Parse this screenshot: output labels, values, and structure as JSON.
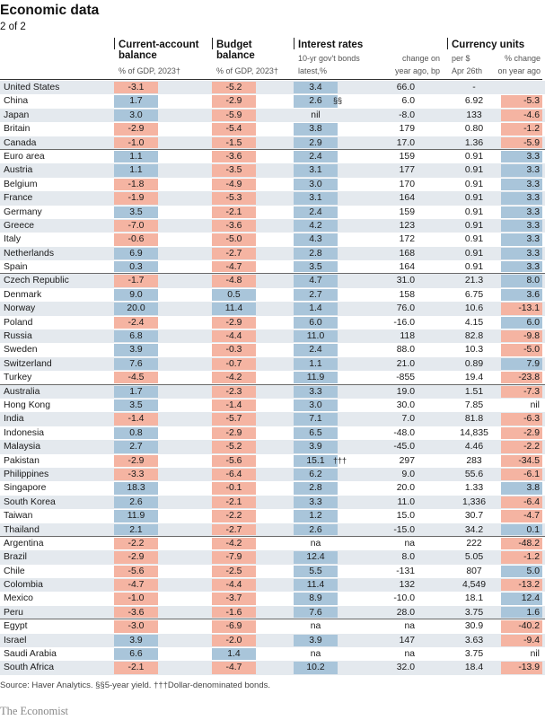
{
  "title": "Economic data",
  "subtitle": "2 of 2",
  "headers": {
    "current_account": "Current-account balance",
    "current_account_sub": "% of GDP, 2023†",
    "budget": "Budget balance",
    "budget_sub": "% of GDP, 2023†",
    "interest": "Interest rates",
    "interest_sub1": "10-yr gov't bonds",
    "interest_sub2": "latest,%",
    "interest_sub3": "change on",
    "interest_sub4": "year ago, bp",
    "currency": "Currency units",
    "currency_sub1": "per $",
    "currency_sub2": "Apr 26th",
    "currency_sub3": "% change",
    "currency_sub4": "on year ago"
  },
  "rows": [
    {
      "country": "United States",
      "ca": "-3.1",
      "bb": "-5.2",
      "ir": "3.4",
      "note": "",
      "irc": "66.0",
      "cur": "-",
      "cc": ""
    },
    {
      "country": "China",
      "ca": "1.7",
      "bb": "-2.9",
      "ir": "2.6",
      "note": "§§",
      "irc": "6.0",
      "cur": "6.92",
      "cc": "-5.3"
    },
    {
      "country": "Japan",
      "ca": "3.0",
      "bb": "-5.9",
      "ir": "nil",
      "note": "",
      "irc": "-8.0",
      "cur": "133",
      "cc": "-4.6"
    },
    {
      "country": "Britain",
      "ca": "-2.9",
      "bb": "-5.4",
      "ir": "3.8",
      "note": "",
      "irc": "179",
      "cur": "0.80",
      "cc": "-1.2"
    },
    {
      "country": "Canada",
      "ca": "-1.0",
      "bb": "-1.5",
      "ir": "2.9",
      "note": "",
      "irc": "17.0",
      "cur": "1.36",
      "cc": "-5.9"
    },
    {
      "country": "Euro area",
      "ca": "1.1",
      "bb": "-3.6",
      "ir": "2.4",
      "note": "",
      "irc": "159",
      "cur": "0.91",
      "cc": "3.3"
    },
    {
      "country": "Austria",
      "ca": "1.1",
      "bb": "-3.5",
      "ir": "3.1",
      "note": "",
      "irc": "177",
      "cur": "0.91",
      "cc": "3.3"
    },
    {
      "country": "Belgium",
      "ca": "-1.8",
      "bb": "-4.9",
      "ir": "3.0",
      "note": "",
      "irc": "170",
      "cur": "0.91",
      "cc": "3.3"
    },
    {
      "country": "France",
      "ca": "-1.9",
      "bb": "-5.3",
      "ir": "3.1",
      "note": "",
      "irc": "164",
      "cur": "0.91",
      "cc": "3.3"
    },
    {
      "country": "Germany",
      "ca": "3.5",
      "bb": "-2.1",
      "ir": "2.4",
      "note": "",
      "irc": "159",
      "cur": "0.91",
      "cc": "3.3"
    },
    {
      "country": "Greece",
      "ca": "-7.0",
      "bb": "-3.6",
      "ir": "4.2",
      "note": "",
      "irc": "123",
      "cur": "0.91",
      "cc": "3.3"
    },
    {
      "country": "Italy",
      "ca": "-0.6",
      "bb": "-5.0",
      "ir": "4.3",
      "note": "",
      "irc": "172",
      "cur": "0.91",
      "cc": "3.3"
    },
    {
      "country": "Netherlands",
      "ca": "6.9",
      "bb": "-2.7",
      "ir": "2.8",
      "note": "",
      "irc": "168",
      "cur": "0.91",
      "cc": "3.3"
    },
    {
      "country": "Spain",
      "ca": "0.3",
      "bb": "-4.7",
      "ir": "3.5",
      "note": "",
      "irc": "164",
      "cur": "0.91",
      "cc": "3.3"
    },
    {
      "country": "Czech Republic",
      "ca": "-1.7",
      "bb": "-4.8",
      "ir": "4.7",
      "note": "",
      "irc": "31.0",
      "cur": "21.3",
      "cc": "8.0"
    },
    {
      "country": "Denmark",
      "ca": "9.0",
      "bb": "0.5",
      "ir": "2.7",
      "note": "",
      "irc": "158",
      "cur": "6.75",
      "cc": "3.6"
    },
    {
      "country": "Norway",
      "ca": "20.0",
      "bb": "11.4",
      "ir": "1.4",
      "note": "",
      "irc": "76.0",
      "cur": "10.6",
      "cc": "-13.1"
    },
    {
      "country": "Poland",
      "ca": "-2.4",
      "bb": "-2.9",
      "ir": "6.0",
      "note": "",
      "irc": "-16.0",
      "cur": "4.15",
      "cc": "6.0"
    },
    {
      "country": "Russia",
      "ca": "6.8",
      "bb": "-4.4",
      "ir": "11.0",
      "note": "",
      "irc": "118",
      "cur": "82.8",
      "cc": "-9.8"
    },
    {
      "country": "Sweden",
      "ca": "3.9",
      "bb": "-0.3",
      "ir": "2.4",
      "note": "",
      "irc": "88.0",
      "cur": "10.3",
      "cc": "-5.0"
    },
    {
      "country": "Switzerland",
      "ca": "7.6",
      "bb": "-0.7",
      "ir": "1.1",
      "note": "",
      "irc": "21.0",
      "cur": "0.89",
      "cc": "7.9"
    },
    {
      "country": "Turkey",
      "ca": "-4.5",
      "bb": "-4.2",
      "ir": "11.9",
      "note": "",
      "irc": "-855",
      "cur": "19.4",
      "cc": "-23.8"
    },
    {
      "country": "Australia",
      "ca": "1.7",
      "bb": "-2.3",
      "ir": "3.3",
      "note": "",
      "irc": "19.0",
      "cur": "1.51",
      "cc": "-7.3"
    },
    {
      "country": "Hong Kong",
      "ca": "3.5",
      "bb": "-1.4",
      "ir": "3.0",
      "note": "",
      "irc": "30.0",
      "cur": "7.85",
      "cc": "nil"
    },
    {
      "country": "India",
      "ca": "-1.4",
      "bb": "-5.7",
      "ir": "7.1",
      "note": "",
      "irc": "7.0",
      "cur": "81.8",
      "cc": "-6.3"
    },
    {
      "country": "Indonesia",
      "ca": "0.8",
      "bb": "-2.9",
      "ir": "6.5",
      "note": "",
      "irc": "-48.0",
      "cur": "14,835",
      "cc": "-2.9"
    },
    {
      "country": "Malaysia",
      "ca": "2.7",
      "bb": "-5.2",
      "ir": "3.9",
      "note": "",
      "irc": "-45.0",
      "cur": "4.46",
      "cc": "-2.2"
    },
    {
      "country": "Pakistan",
      "ca": "-2.9",
      "bb": "-5.6",
      "ir": "15.1",
      "note": "†††",
      "irc": "297",
      "cur": "283",
      "cc": "-34.5"
    },
    {
      "country": "Philippines",
      "ca": "-3.3",
      "bb": "-6.4",
      "ir": "6.2",
      "note": "",
      "irc": "9.0",
      "cur": "55.6",
      "cc": "-6.1"
    },
    {
      "country": "Singapore",
      "ca": "18.3",
      "bb": "-0.1",
      "ir": "2.8",
      "note": "",
      "irc": "20.0",
      "cur": "1.33",
      "cc": "3.8"
    },
    {
      "country": "South Korea",
      "ca": "2.6",
      "bb": "-2.1",
      "ir": "3.3",
      "note": "",
      "irc": "11.0",
      "cur": "1,336",
      "cc": "-6.4"
    },
    {
      "country": "Taiwan",
      "ca": "11.9",
      "bb": "-2.2",
      "ir": "1.2",
      "note": "",
      "irc": "15.0",
      "cur": "30.7",
      "cc": "-4.7"
    },
    {
      "country": "Thailand",
      "ca": "2.1",
      "bb": "-2.7",
      "ir": "2.6",
      "note": "",
      "irc": "-15.0",
      "cur": "34.2",
      "cc": "0.1"
    },
    {
      "country": "Argentina",
      "ca": "-2.2",
      "bb": "-4.2",
      "ir": "na",
      "note": "",
      "irc": "na",
      "cur": "222",
      "cc": "-48.2"
    },
    {
      "country": "Brazil",
      "ca": "-2.9",
      "bb": "-7.9",
      "ir": "12.4",
      "note": "",
      "irc": "8.0",
      "cur": "5.05",
      "cc": "-1.2"
    },
    {
      "country": "Chile",
      "ca": "-5.6",
      "bb": "-2.5",
      "ir": "5.5",
      "note": "",
      "irc": "-131",
      "cur": "807",
      "cc": "5.0"
    },
    {
      "country": "Colombia",
      "ca": "-4.7",
      "bb": "-4.4",
      "ir": "11.4",
      "note": "",
      "irc": "132",
      "cur": "4,549",
      "cc": "-13.2"
    },
    {
      "country": "Mexico",
      "ca": "-1.0",
      "bb": "-3.7",
      "ir": "8.9",
      "note": "",
      "irc": "-10.0",
      "cur": "18.1",
      "cc": "12.4"
    },
    {
      "country": "Peru",
      "ca": "-3.6",
      "bb": "-1.6",
      "ir": "7.6",
      "note": "",
      "irc": "28.0",
      "cur": "3.75",
      "cc": "1.6"
    },
    {
      "country": "Egypt",
      "ca": "-3.0",
      "bb": "-6.9",
      "ir": "na",
      "note": "",
      "irc": "na",
      "cur": "30.9",
      "cc": "-40.2"
    },
    {
      "country": "Israel",
      "ca": "3.9",
      "bb": "-2.0",
      "ir": "3.9",
      "note": "",
      "irc": "147",
      "cur": "3.63",
      "cc": "-9.4"
    },
    {
      "country": "Saudi Arabia",
      "ca": "6.6",
      "bb": "1.4",
      "ir": "na",
      "note": "",
      "irc": "na",
      "cur": "3.75",
      "cc": "nil"
    },
    {
      "country": "South Africa",
      "ca": "-2.1",
      "bb": "-4.7",
      "ir": "10.2",
      "note": "",
      "irc": "32.0",
      "cur": "18.4",
      "cc": "-13.9"
    }
  ],
  "source": "Source: Haver Analytics. §§5-year yield. †††Dollar-denominated bonds.",
  "brand": "The Economist",
  "colors": {
    "positive": "#a9c5da",
    "negative": "#f5b4a2",
    "stripe": "#e4e9ee"
  }
}
